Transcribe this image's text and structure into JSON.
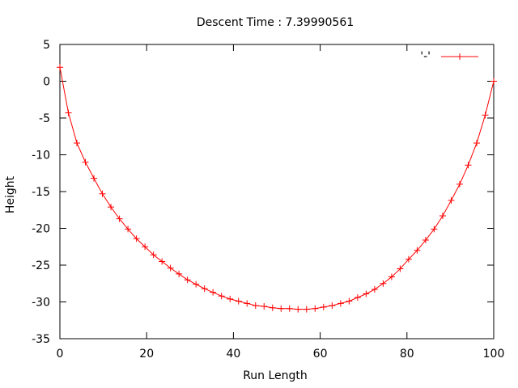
{
  "chart_data": {
    "type": "line",
    "title": "Descent Time : 7.39990561",
    "xlabel": "Run Length",
    "ylabel": "Height",
    "xlim": [
      0,
      100
    ],
    "ylim": [
      -35,
      5
    ],
    "xticks": [
      0,
      20,
      40,
      60,
      80,
      100
    ],
    "yticks": [
      5,
      0,
      -5,
      -10,
      -15,
      -20,
      -25,
      -30,
      -35
    ],
    "grid": false,
    "legend_position": "top-right",
    "series_color": "#ff0000",
    "marker": "plus",
    "series": [
      {
        "name": "'-'",
        "x": [
          0,
          1.96,
          3.92,
          5.88,
          7.84,
          9.8,
          11.76,
          13.73,
          15.69,
          17.65,
          19.61,
          21.57,
          23.53,
          25.49,
          27.45,
          29.41,
          31.37,
          33.33,
          35.29,
          37.25,
          39.22,
          41.18,
          43.14,
          45.1,
          47.06,
          49.02,
          50.98,
          52.94,
          54.9,
          56.86,
          58.82,
          60.78,
          62.75,
          64.71,
          66.67,
          68.63,
          70.59,
          72.55,
          74.51,
          76.47,
          78.43,
          80.39,
          82.35,
          84.31,
          86.27,
          88.24,
          90.2,
          92.16,
          94.12,
          96.08,
          98.04,
          100
        ],
        "y": [
          1.9,
          -4.3,
          -8.4,
          -11.0,
          -13.2,
          -15.3,
          -17.1,
          -18.7,
          -20.1,
          -21.4,
          -22.5,
          -23.6,
          -24.5,
          -25.4,
          -26.2,
          -27.0,
          -27.6,
          -28.2,
          -28.7,
          -29.2,
          -29.6,
          -29.9,
          -30.2,
          -30.5,
          -30.6,
          -30.8,
          -30.9,
          -30.9,
          -31.0,
          -31.0,
          -30.9,
          -30.7,
          -30.5,
          -30.2,
          -29.9,
          -29.4,
          -28.9,
          -28.3,
          -27.5,
          -26.6,
          -25.5,
          -24.2,
          -23.0,
          -21.6,
          -20.1,
          -18.3,
          -16.2,
          -14.0,
          -11.4,
          -8.4,
          -4.6,
          0
        ]
      }
    ]
  }
}
